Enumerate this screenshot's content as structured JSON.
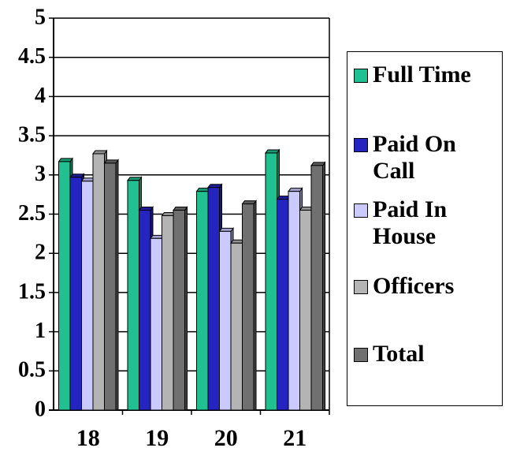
{
  "chart_data": {
    "type": "bar",
    "categories": [
      "18",
      "19",
      "20",
      "21"
    ],
    "series": [
      {
        "name": "Full Time",
        "color": "#20c090",
        "values": [
          3.17,
          2.93,
          2.79,
          3.28
        ]
      },
      {
        "name": "Paid On Call",
        "color": "#2424c0",
        "values": [
          2.97,
          2.55,
          2.84,
          2.69
        ]
      },
      {
        "name": "Paid In House",
        "color": "#cacaff",
        "values": [
          2.92,
          2.19,
          2.28,
          2.79
        ]
      },
      {
        "name": "Officers",
        "color": "#b4b4b4",
        "values": [
          3.27,
          2.48,
          2.13,
          2.55
        ]
      },
      {
        "name": "Total",
        "color": "#707070",
        "values": [
          3.15,
          2.55,
          2.63,
          3.12
        ]
      }
    ],
    "ylim": [
      0,
      5
    ],
    "yticks": [
      0,
      0.5,
      1,
      1.5,
      2,
      2.5,
      3,
      3.5,
      4,
      4.5,
      5
    ],
    "grid": true
  }
}
